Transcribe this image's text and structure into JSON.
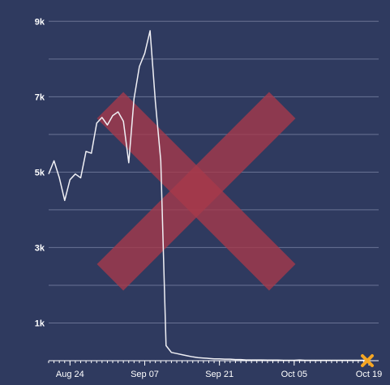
{
  "chart_data": {
    "type": "line",
    "title": "",
    "xlabel": "",
    "ylabel": "",
    "ylim": [
      0,
      9200
    ],
    "xlim": [
      "2020-08-20",
      "2020-10-19"
    ],
    "grid": true,
    "legend": "none",
    "y_ticks": [
      {
        "value": 9000,
        "label": "9k"
      },
      {
        "value": 8000,
        "label": ""
      },
      {
        "value": 7000,
        "label": "7k"
      },
      {
        "value": 6000,
        "label": ""
      },
      {
        "value": 5000,
        "label": "5k"
      },
      {
        "value": 4000,
        "label": ""
      },
      {
        "value": 3000,
        "label": "3k"
      },
      {
        "value": 2000,
        "label": ""
      },
      {
        "value": 1000,
        "label": "1k"
      }
    ],
    "x_ticks": [
      {
        "date": "2020-08-24",
        "label": "Aug 24"
      },
      {
        "date": "2020-09-07",
        "label": "Sep 07"
      },
      {
        "date": "2020-09-21",
        "label": "Sep 21"
      },
      {
        "date": "2020-10-05",
        "label": "Oct 05"
      },
      {
        "date": "2020-10-19",
        "label": "Oct 19"
      }
    ],
    "series": [
      {
        "color": "#f0f0f5",
        "points": [
          [
            "2020-08-20",
            4950
          ],
          [
            "2020-08-21",
            5300
          ],
          [
            "2020-08-22",
            4850
          ],
          [
            "2020-08-23",
            4250
          ],
          [
            "2020-08-24",
            4800
          ],
          [
            "2020-08-25",
            4950
          ],
          [
            "2020-08-26",
            4850
          ],
          [
            "2020-08-27",
            5550
          ],
          [
            "2020-08-28",
            5500
          ],
          [
            "2020-08-29",
            6300
          ],
          [
            "2020-08-30",
            6450
          ],
          [
            "2020-08-31",
            6250
          ],
          [
            "2020-09-01",
            6500
          ],
          [
            "2020-09-02",
            6600
          ],
          [
            "2020-09-03",
            6350
          ],
          [
            "2020-09-04",
            5250
          ],
          [
            "2020-09-05",
            6950
          ],
          [
            "2020-09-06",
            7800
          ],
          [
            "2020-09-07",
            8150
          ],
          [
            "2020-09-08",
            8750
          ],
          [
            "2020-09-09",
            6850
          ],
          [
            "2020-09-10",
            5300
          ],
          [
            "2020-09-11",
            400
          ],
          [
            "2020-09-12",
            220
          ],
          [
            "2020-09-13",
            190
          ],
          [
            "2020-09-14",
            160
          ],
          [
            "2020-09-15",
            130
          ],
          [
            "2020-09-16",
            100
          ],
          [
            "2020-09-17",
            80
          ],
          [
            "2020-09-18",
            70
          ],
          [
            "2020-09-19",
            60
          ],
          [
            "2020-09-20",
            50
          ],
          [
            "2020-09-21",
            50
          ],
          [
            "2020-09-22",
            40
          ],
          [
            "2020-09-23",
            40
          ],
          [
            "2020-09-24",
            30
          ],
          [
            "2020-09-25",
            30
          ],
          [
            "2020-09-26",
            20
          ],
          [
            "2020-09-27",
            20
          ],
          [
            "2020-09-28",
            20
          ],
          [
            "2020-09-29",
            20
          ],
          [
            "2020-09-30",
            15
          ],
          [
            "2020-10-01",
            15
          ],
          [
            "2020-10-02",
            15
          ],
          [
            "2020-10-03",
            10
          ],
          [
            "2020-10-04",
            10
          ],
          [
            "2020-10-05",
            10
          ],
          [
            "2020-10-06",
            20
          ],
          [
            "2020-10-07",
            10
          ],
          [
            "2020-10-08",
            10
          ],
          [
            "2020-10-09",
            10
          ],
          [
            "2020-10-10",
            10
          ],
          [
            "2020-10-11",
            10
          ],
          [
            "2020-10-12",
            10
          ],
          [
            "2020-10-13",
            10
          ],
          [
            "2020-10-14",
            10
          ],
          [
            "2020-10-15",
            10
          ],
          [
            "2020-10-16",
            10
          ],
          [
            "2020-10-17",
            10
          ],
          [
            "2020-10-18",
            10
          ],
          [
            "2020-10-19",
            10
          ]
        ]
      }
    ],
    "end_marker": {
      "date": "2020-10-19",
      "value": 0,
      "color": "#f5a623"
    },
    "overlay_cross_color": "#a83a4a"
  },
  "colors": {
    "background": "#2f3a5f",
    "gridline": "#6a7394",
    "axis": "#ffffff",
    "text": "#ffffff"
  }
}
